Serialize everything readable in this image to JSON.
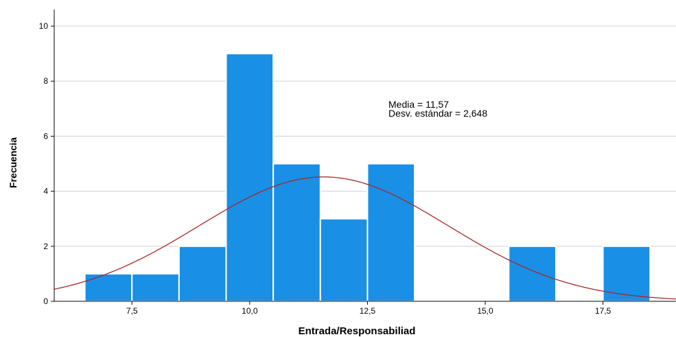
{
  "chart_data": {
    "type": "bar",
    "bins": [
      {
        "x0": 6.5,
        "x1": 7.5,
        "value": 1
      },
      {
        "x0": 7.5,
        "x1": 8.5,
        "value": 1
      },
      {
        "x0": 8.5,
        "x1": 9.5,
        "value": 2
      },
      {
        "x0": 9.5,
        "x1": 10.5,
        "value": 9
      },
      {
        "x0": 10.5,
        "x1": 11.5,
        "value": 5
      },
      {
        "x0": 11.5,
        "x1": 12.5,
        "value": 3
      },
      {
        "x0": 12.5,
        "x1": 13.5,
        "value": 5
      },
      {
        "x0": 15.5,
        "x1": 16.5,
        "value": 2
      },
      {
        "x0": 17.5,
        "x1": 18.5,
        "value": 2
      }
    ],
    "normal_curve": {
      "mean": 11.57,
      "sd": 2.648,
      "peak": 4.52
    },
    "xlabel": "Entrada/Responsabiliad",
    "ylabel": "Frecuencia",
    "xlim": [
      5.85,
      19.05
    ],
    "ylim": [
      0,
      10.6
    ],
    "x_ticks": [
      {
        "value": 7.5,
        "label": "7,5"
      },
      {
        "value": 10.0,
        "label": "10,0"
      },
      {
        "value": 12.5,
        "label": "12,5"
      },
      {
        "value": 15.0,
        "label": "15,0"
      },
      {
        "value": 17.5,
        "label": "17,5"
      }
    ],
    "y_ticks": [
      {
        "value": 0,
        "label": "0"
      },
      {
        "value": 2,
        "label": "2"
      },
      {
        "value": 4,
        "label": "4"
      },
      {
        "value": 6,
        "label": "6"
      },
      {
        "value": 8,
        "label": "8"
      },
      {
        "value": 10,
        "label": "10"
      }
    ],
    "annotation": {
      "mean_text": "Media = 11,57",
      "sd_text": "Desv. estándar = 2,648"
    },
    "grid": true,
    "colors": {
      "bar_fill": "#1a8fe6",
      "bar_stroke": "#ffffff",
      "curve": "#a82828",
      "grid": "#d0d0d0",
      "axis": "#000000"
    }
  }
}
